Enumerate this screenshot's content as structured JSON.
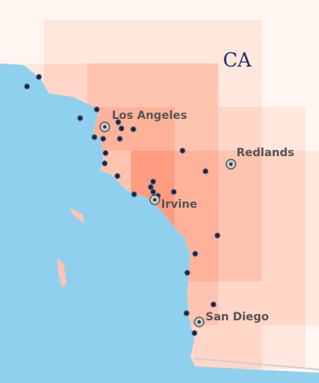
{
  "map": {
    "state_label": "CA",
    "colors": {
      "water": "#8fd0ef",
      "land_blank": "#ffffff",
      "marker_fill": "#1c2340",
      "marker_stroke": "#5a6a8a",
      "label_text": "#555555",
      "state_text": "#1a2a6c",
      "heat_scale": [
        "#fff6f2",
        "#ffe7dd",
        "#ffd6c7",
        "#ffc4b0",
        "#ffb29a",
        "#ff9c80"
      ]
    },
    "cities": [
      {
        "name": "Los Angeles",
        "icon": "city-target-icon"
      },
      {
        "name": "Redlands",
        "icon": "city-target-icon"
      },
      {
        "name": "Irvine",
        "icon": "city-target-icon"
      },
      {
        "name": "San Diego",
        "icon": "city-target-icon"
      }
    ],
    "point_marker_icon": "location-dot-icon"
  }
}
